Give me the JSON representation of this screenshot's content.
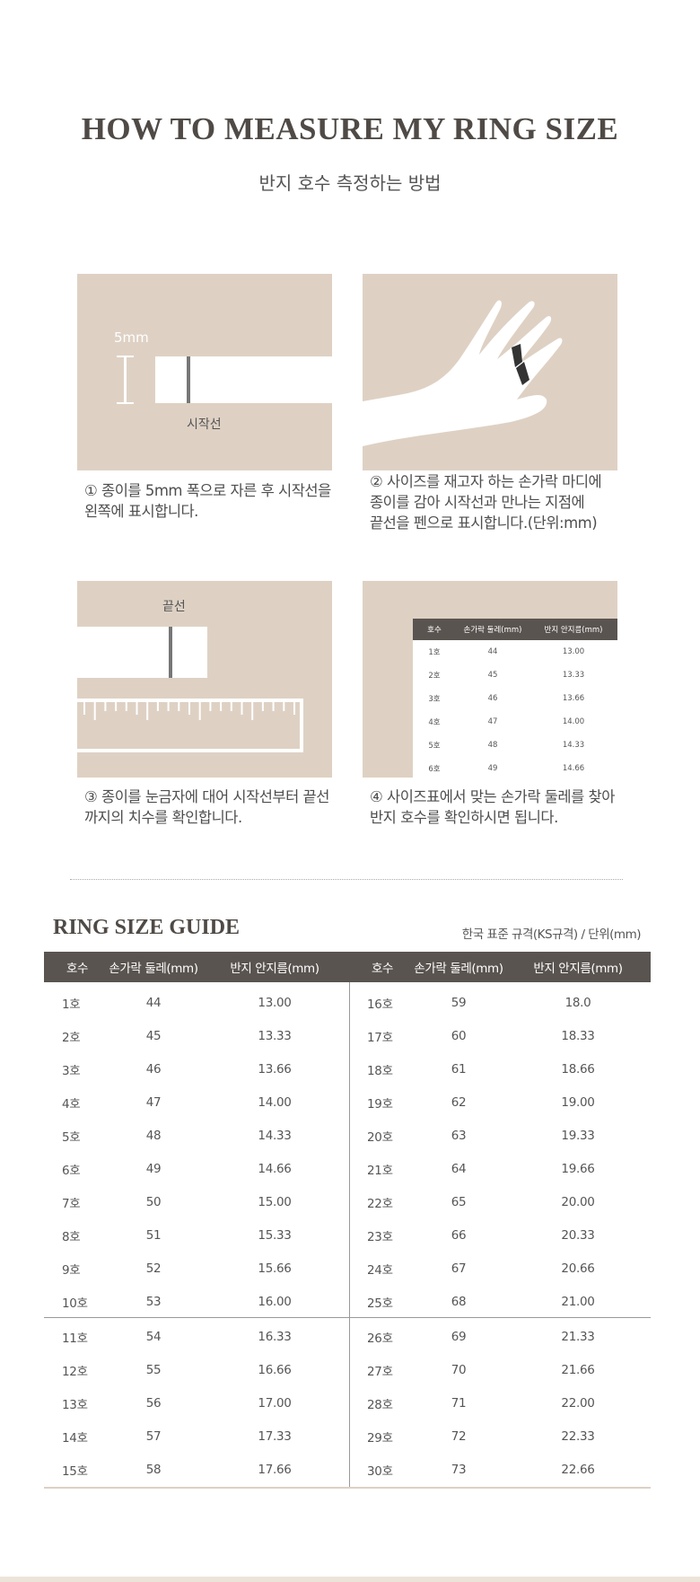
{
  "header": {
    "title": "HOW TO MEASURE MY RING SIZE",
    "subtitle": "반지 호수 측정하는 방법"
  },
  "steps": [
    {
      "label_5mm": "5mm",
      "label_start": "시작선",
      "line1": "① 종이를 5mm 폭으로 자른 후 시작선을",
      "line2": "왼쪽에 표시합니다."
    },
    {
      "line1": "② 사이즈를 재고자 하는 손가락 마디에",
      "line2": "종이를 감아 시작선과 만나는 지점에",
      "line3": "끝선을 펜으로 표시합니다.(단위:mm)"
    },
    {
      "label_end": "끝선",
      "line1": "③ 종이를 눈금자에 대어 시작선부터 끝선",
      "line2": "까지의 치수를 확인합니다."
    },
    {
      "line1": "④ 사이즈표에서 맞는 손가락 둘레를 찾아",
      "line2": "반지 호수를 확인하시면 됩니다.",
      "mini_headers": [
        "호수",
        "손가락 둘레(mm)",
        "반지 안지름(mm)"
      ],
      "mini_rows": [
        [
          "1호",
          "44",
          "13.00"
        ],
        [
          "2호",
          "45",
          "13.33"
        ],
        [
          "3호",
          "46",
          "13.66"
        ],
        [
          "4호",
          "47",
          "14.00"
        ],
        [
          "5호",
          "48",
          "14.33"
        ],
        [
          "6호",
          "49",
          "14.66"
        ]
      ]
    }
  ],
  "guide": {
    "title": "RING SIZE GUIDE",
    "note": "한국 표준 규격(KS규격) / 단위(mm)",
    "headers": [
      "호수",
      "손가락 둘레(mm)",
      "반지 안지름(mm)",
      "호수",
      "손가락 둘레(mm)",
      "반지 안지름(mm)"
    ],
    "rows": [
      [
        "1호",
        "44",
        "13.00",
        "16호",
        "59",
        "18.0"
      ],
      [
        "2호",
        "45",
        "13.33",
        "17호",
        "60",
        "18.33"
      ],
      [
        "3호",
        "46",
        "13.66",
        "18호",
        "61",
        "18.66"
      ],
      [
        "4호",
        "47",
        "14.00",
        "19호",
        "62",
        "19.00"
      ],
      [
        "5호",
        "48",
        "14.33",
        "20호",
        "63",
        "19.33"
      ],
      [
        "6호",
        "49",
        "14.66",
        "21호",
        "64",
        "19.66"
      ],
      [
        "7호",
        "50",
        "15.00",
        "22호",
        "65",
        "20.00"
      ],
      [
        "8호",
        "51",
        "15.33",
        "23호",
        "66",
        "20.33"
      ],
      [
        "9호",
        "52",
        "15.66",
        "24호",
        "67",
        "20.66"
      ],
      [
        "10호",
        "53",
        "16.00",
        "25호",
        "68",
        "21.00"
      ],
      [
        "11호",
        "54",
        "16.33",
        "26호",
        "69",
        "21.33"
      ],
      [
        "12호",
        "55",
        "16.66",
        "27호",
        "70",
        "21.66"
      ],
      [
        "13호",
        "56",
        "17.00",
        "28호",
        "71",
        "22.00"
      ],
      [
        "14호",
        "57",
        "17.33",
        "29호",
        "72",
        "22.33"
      ],
      [
        "15호",
        "58",
        "17.66",
        "30호",
        "73",
        "22.66"
      ]
    ]
  },
  "colors": {
    "panel": "#ded1c4",
    "table_header": "#5a5450",
    "text": "#555555"
  }
}
